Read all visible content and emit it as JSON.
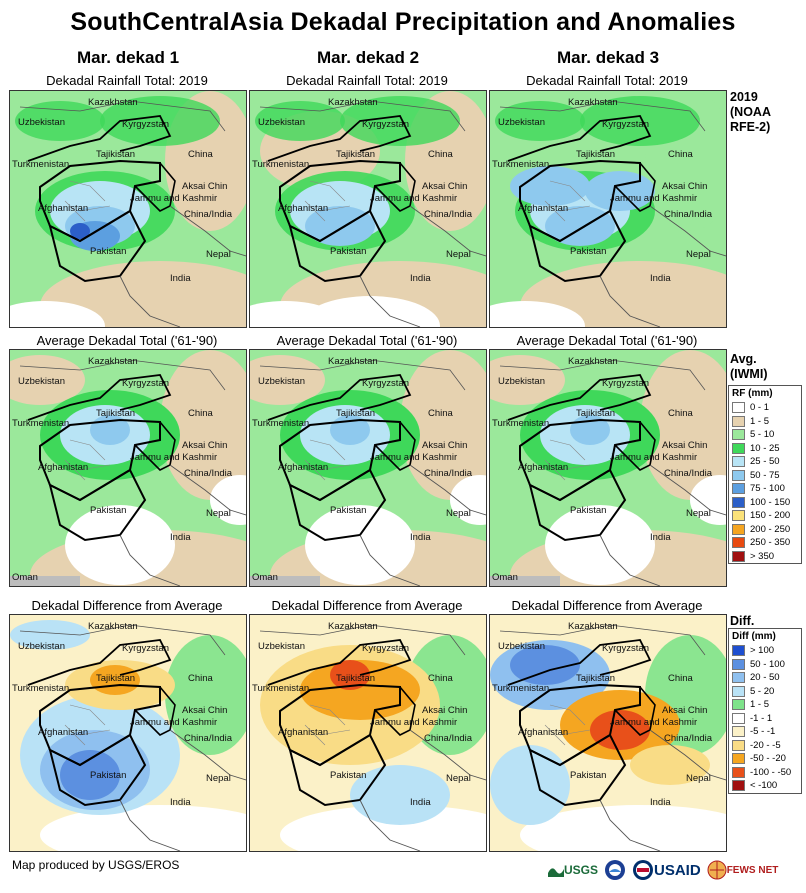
{
  "title": "SouthCentralAsia Dekadal Precipitation and Anomalies",
  "columns": [
    "Mar. dekad 1",
    "Mar. dekad 2",
    "Mar. dekad 3"
  ],
  "rows": [
    {
      "map_title": "Dekadal Rainfall Total: 2019",
      "label_lines": [
        "2019",
        "(NOAA",
        "RFE-2)"
      ],
      "style": "rain"
    },
    {
      "map_title": "Average Dekadal Total ('61-'90)",
      "label_lines": [
        "Avg.",
        "(IWMI)"
      ],
      "style": "avg"
    },
    {
      "map_title": "Dekadal Difference from Average",
      "label_lines": [
        "Diff."
      ],
      "style": "diff"
    }
  ],
  "place_names": {
    "kazakhstan": "Kazakhstan",
    "uzbekistan": "Uzbekistan",
    "kyrgyzstan": "Kyrgyzstan",
    "turkmenistan": "Turkmenistan",
    "tajikistan": "Tajikistan",
    "china": "China",
    "aksai_chin": "Aksai Chin",
    "jammu": "Jammu and Kashmir",
    "china_india": "China/India",
    "afghanistan": "Afghanistan",
    "pakistan": "Pakistan",
    "nepal": "Nepal",
    "india": "India",
    "oman": "Oman"
  },
  "rf_legend": {
    "title": "RF (mm)",
    "items": [
      {
        "label": "0 - 1",
        "color": "#ffffff"
      },
      {
        "label": "1 - 5",
        "color": "#e6d2b0"
      },
      {
        "label": "5 - 10",
        "color": "#9be89b"
      },
      {
        "label": "10 - 25",
        "color": "#3fd85a"
      },
      {
        "label": "25 - 50",
        "color": "#b8e4f5"
      },
      {
        "label": "50 - 75",
        "color": "#8ec9ee"
      },
      {
        "label": "75 - 100",
        "color": "#5c9fe0"
      },
      {
        "label": "100 - 150",
        "color": "#2c5fc8"
      },
      {
        "label": "150 - 200",
        "color": "#fbe27a"
      },
      {
        "label": "200 - 250",
        "color": "#f5a521"
      },
      {
        "label": "250 - 350",
        "color": "#e84a10"
      },
      {
        "label": "> 350",
        "color": "#a01010"
      }
    ]
  },
  "diff_legend": {
    "title": "Diff (mm)",
    "items": [
      {
        "label": "> 100",
        "color": "#1e4fd0"
      },
      {
        "label": "50 - 100",
        "color": "#5c90e0"
      },
      {
        "label": "20 - 50",
        "color": "#8fc0ef"
      },
      {
        "label": "5 - 20",
        "color": "#b9e2f6"
      },
      {
        "label": "1 - 5",
        "color": "#7ee38a"
      },
      {
        "label": "-1 - 1",
        "color": "#ffffff"
      },
      {
        "label": "-5 - -1",
        "color": "#fbf1c8"
      },
      {
        "label": "-20 - -5",
        "color": "#f9dc86"
      },
      {
        "label": "-50 - -20",
        "color": "#f5a621"
      },
      {
        "label": "-100 - -50",
        "color": "#e8501a"
      },
      {
        "label": "< -100",
        "color": "#a01010"
      }
    ]
  },
  "footer": "Map produced by USGS/EROS",
  "logos": {
    "usgs": "USGS",
    "usaid": "USAID",
    "fews": "FEWS NET"
  }
}
